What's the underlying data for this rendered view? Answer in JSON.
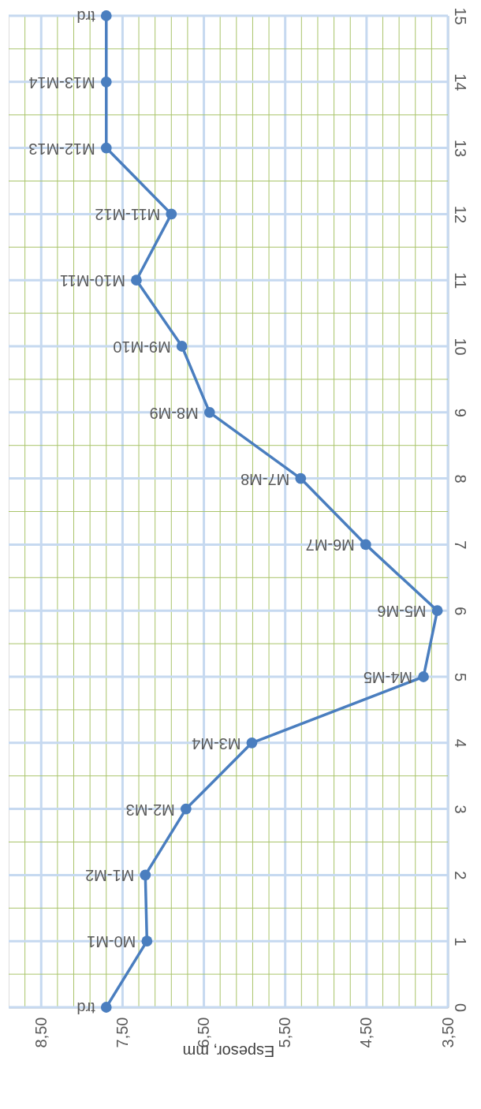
{
  "chart_data": {
    "type": "line",
    "xlabel": "Espesor, mm",
    "x": [
      7.7,
      7.2,
      7.22,
      6.72,
      5.91,
      3.8,
      3.63,
      4.51,
      5.31,
      6.43,
      6.77,
      7.33,
      6.9,
      7.7,
      7.7,
      7.7
    ],
    "series": [
      {
        "color": "#4a7ebf",
        "values": [
          0,
          1,
          2,
          3,
          4,
          5,
          6,
          7,
          8,
          9,
          10,
          11,
          12,
          13,
          14,
          15
        ]
      }
    ],
    "annotations": [
      {
        "text": "trd",
        "x": 7.7,
        "y": 0
      },
      {
        "text": "M0-M1",
        "x": 7.2,
        "y": 1
      },
      {
        "text": "M1-M2",
        "x": 7.22,
        "y": 2
      },
      {
        "text": "M2-M3",
        "x": 6.72,
        "y": 3
      },
      {
        "text": "M3-M4",
        "x": 5.91,
        "y": 4
      },
      {
        "text": "M4-M5",
        "x": 3.8,
        "y": 5
      },
      {
        "text": "M5-M6",
        "x": 3.63,
        "y": 6
      },
      {
        "text": "M6-M7",
        "x": 4.51,
        "y": 7
      },
      {
        "text": "M7-M8",
        "x": 5.31,
        "y": 8
      },
      {
        "text": "M8-M9",
        "x": 6.43,
        "y": 9
      },
      {
        "text": "M9-M10",
        "x": 6.77,
        "y": 10
      },
      {
        "text": "M10-M11",
        "x": 7.33,
        "y": 11
      },
      {
        "text": "M11-M12",
        "x": 6.9,
        "y": 12
      },
      {
        "text": "M12-M13",
        "x": 7.7,
        "y": 13
      },
      {
        "text": "M13-M14",
        "x": 7.7,
        "y": 14
      },
      {
        "text": "trd",
        "x": 7.7,
        "y": 15
      }
    ],
    "ylim": [
      0,
      15
    ],
    "yticks": [
      0,
      {
        "value": 0.5,
        "label": null
      },
      1,
      {
        "value": 1.5,
        "label": null
      },
      2,
      {
        "value": 2.5,
        "label": null
      },
      3,
      {
        "value": 3.5,
        "label": null
      },
      4,
      {
        "value": 4.5,
        "label": null
      },
      5,
      {
        "value": 5.5,
        "label": null
      },
      6,
      {
        "value": 6.5,
        "label": null
      },
      7,
      {
        "value": 7.5,
        "label": null
      },
      8,
      {
        "value": 8.5,
        "label": null
      },
      9,
      {
        "value": 9.5,
        "label": null
      },
      10,
      {
        "value": 10.5,
        "label": null
      },
      11,
      {
        "value": 11.5,
        "label": null
      },
      12,
      {
        "value": 12.5,
        "label": null
      },
      13,
      {
        "value": 13.5,
        "label": null
      },
      14,
      {
        "value": 14.5,
        "label": null
      },
      15
    ],
    "xlim": [
      8.9,
      3.5
    ],
    "xticks": [
      {
        "value": 8.7,
        "label": null
      },
      {
        "value": 8.5,
        "label": "8,50"
      },
      {
        "value": 8.3,
        "label": null
      },
      {
        "value": 8.1,
        "label": null
      },
      {
        "value": 7.9,
        "label": null
      },
      {
        "value": 7.7,
        "label": null
      },
      {
        "value": 7.5,
        "label": "7,50"
      },
      {
        "value": 7.3,
        "label": null
      },
      {
        "value": 7.1,
        "label": null
      },
      {
        "value": 6.9,
        "label": null
      },
      {
        "value": 6.7,
        "label": null
      },
      {
        "value": 6.5,
        "label": "6,50"
      },
      {
        "value": 6.3,
        "label": null
      },
      {
        "value": 6.1,
        "label": null
      },
      {
        "value": 5.9,
        "label": null
      },
      {
        "value": 5.7,
        "label": null
      },
      {
        "value": 5.5,
        "label": "5,50"
      },
      {
        "value": 5.3,
        "label": null
      },
      {
        "value": 5.1,
        "label": null
      },
      {
        "value": 4.9,
        "label": null
      },
      {
        "value": 4.7,
        "label": null
      },
      {
        "value": 4.5,
        "label": "4,50"
      },
      {
        "value": 4.3,
        "label": null
      },
      {
        "value": 4.1,
        "label": null
      },
      {
        "value": 3.9,
        "label": null
      },
      {
        "value": 3.7,
        "label": null
      },
      {
        "value": 3.5,
        "label": "3,50"
      }
    ],
    "grid": true,
    "marker": "circle",
    "line_style": "solid"
  }
}
